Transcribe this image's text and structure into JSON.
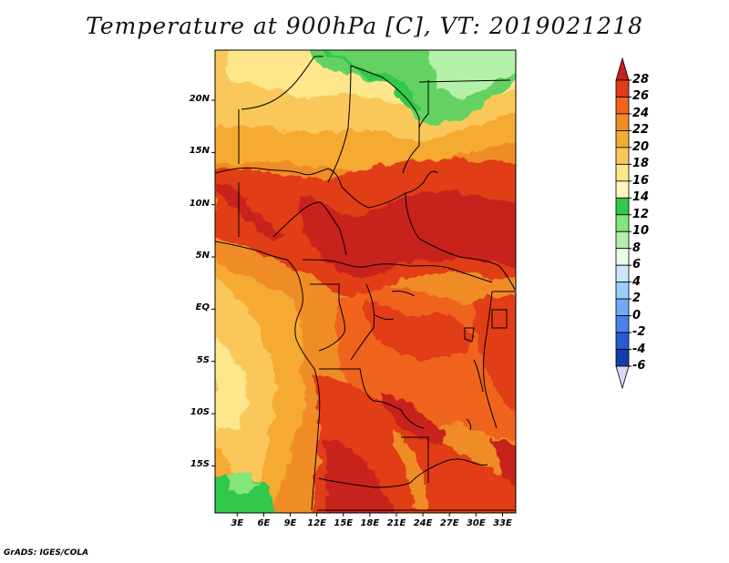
{
  "title": "Temperature at 900hPa [C], VT: 2019021218",
  "footer": "GrADS: IGES/COLA",
  "lat_labels": [
    "20N",
    "15N",
    "10N",
    "5N",
    "EQ",
    "5S",
    "10S",
    "15S"
  ],
  "lat_values": [
    20,
    15,
    10,
    5,
    0,
    -5,
    -10,
    -15
  ],
  "lon_labels": [
    "3E",
    "6E",
    "9E",
    "12E",
    "15E",
    "18E",
    "21E",
    "24E",
    "27E",
    "30E",
    "33E"
  ],
  "lon_values": [
    3,
    6,
    9,
    12,
    15,
    18,
    21,
    24,
    27,
    30,
    33
  ],
  "domain": {
    "lon_min": 0.5,
    "lon_max": 34.5,
    "lat_min": -19.5,
    "lat_max": 24.8
  },
  "colorbar": {
    "labels": [
      "28",
      "26",
      "24",
      "22",
      "20",
      "18",
      "16",
      "14",
      "12",
      "10",
      "8",
      "6",
      "4",
      "2",
      "0",
      "-2",
      "-4",
      "-6"
    ],
    "colors": [
      "#c8201e",
      "#e13c16",
      "#f0641e",
      "#f08c28",
      "#f5aa32",
      "#fac85a",
      "#fde68c",
      "#fff5be",
      "#32c84b",
      "#82e678",
      "#b4f0aa",
      "#e6ffe6",
      "#c8e6ff",
      "#9bcdff",
      "#6eaaf5",
      "#4682eb",
      "#285ad2",
      "#143caa",
      "#0f1e78",
      "#0a0a50"
    ],
    "over_color": "#c8201e",
    "under_color": "#d8d8f4"
  },
  "map_colors": {
    "c28": "#c8201e",
    "c26": "#e13c16",
    "c24": "#f0641e",
    "c22": "#f08c28",
    "c20": "#f5aa32",
    "c18": "#fac85a",
    "c16": "#fde68c",
    "g14": "#32c84b",
    "g12": "#64d264",
    "g10": "#b4f0aa"
  }
}
